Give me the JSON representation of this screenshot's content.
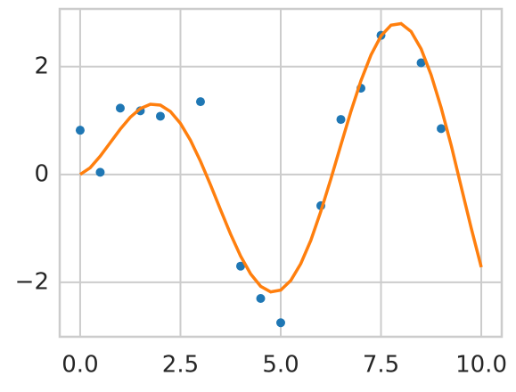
{
  "chart_data": {
    "type": "scatter",
    "series": [
      {
        "type": "scatter",
        "color": "#1f77b4",
        "x": [
          0,
          0.5,
          1,
          1.5,
          2,
          3,
          4,
          4.5,
          5,
          6,
          6.5,
          7,
          7.5,
          8.5,
          9
        ],
        "values": [
          0.82,
          0.04,
          1.23,
          1.18,
          1.08,
          1.35,
          -1.7,
          -2.3,
          -2.75,
          -0.58,
          1.02,
          1.6,
          2.58,
          2.07,
          0.85
        ]
      },
      {
        "type": "line",
        "color": "#ff7f0e",
        "x": [
          0,
          0.25,
          0.5,
          0.75,
          1,
          1.25,
          1.5,
          1.75,
          2,
          2.25,
          2.5,
          2.75,
          3,
          3.25,
          3.5,
          3.75,
          4,
          4.25,
          4.5,
          4.75,
          5,
          5.25,
          5.5,
          5.75,
          6,
          6.25,
          6.5,
          6.75,
          7,
          7.25,
          7.5,
          7.75,
          8,
          8.25,
          8.5,
          8.75,
          9,
          9.25,
          9.5,
          9.75,
          10
        ],
        "values": [
          0,
          0.124,
          0.339,
          0.59,
          0.841,
          1.061,
          1.222,
          1.302,
          1.286,
          1.167,
          0.946,
          0.633,
          0.244,
          -0.195,
          -0.656,
          -1.107,
          -1.514,
          -1.845,
          -2.074,
          -2.178,
          -2.144,
          -1.968,
          -1.655,
          -1.223,
          -0.684,
          -0.083,
          0.548,
          1.169,
          1.738,
          2.216,
          2.569,
          2.769,
          2.798,
          2.651,
          2.328,
          1.845,
          1.236,
          0.54,
          -0.232,
          -0.998,
          -1.72
        ]
      }
    ],
    "xlim": [
      -0.51,
      10.51
    ],
    "xticks": [
      {
        "value": 0,
        "label": "0.0"
      },
      {
        "value": 2.5,
        "label": "2.5"
      },
      {
        "value": 5,
        "label": "5.0"
      },
      {
        "value": 7.5,
        "label": "7.5"
      },
      {
        "value": 10,
        "label": "10.0"
      }
    ],
    "ylim": [
      -3.01,
      3.07
    ],
    "yticks": [
      {
        "value": -2,
        "label": "−2"
      },
      0,
      2
    ],
    "grid": true
  }
}
